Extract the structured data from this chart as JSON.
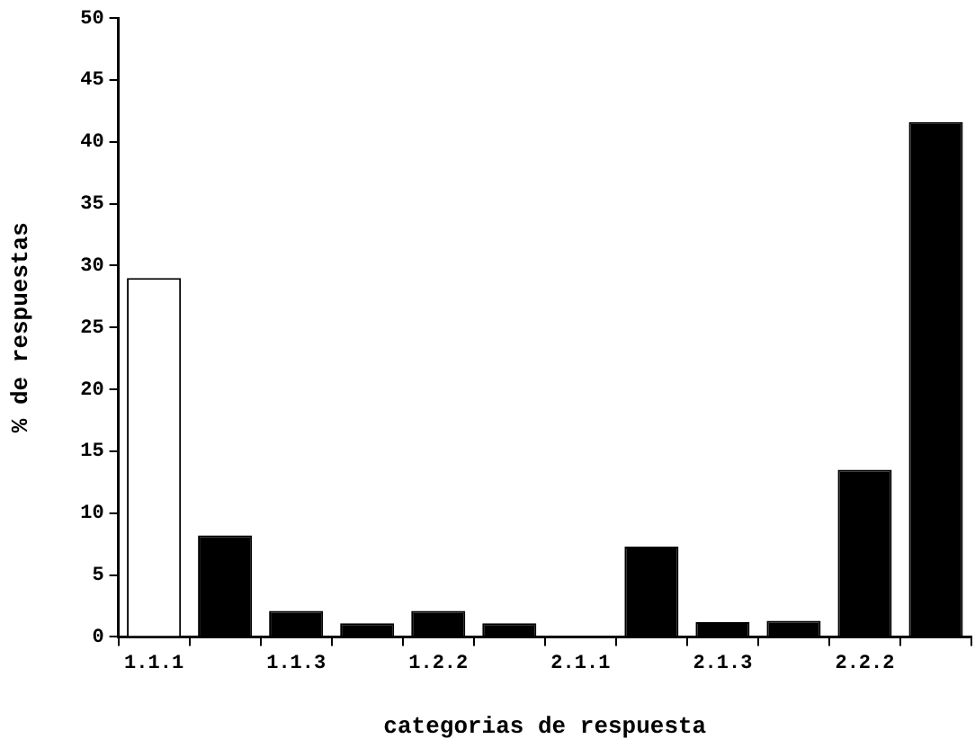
{
  "chart_data": {
    "type": "bar",
    "xlabel": "categorias de respuesta",
    "ylabel": "% de respuestas",
    "categories": [
      "1.1.1",
      null,
      "1.1.3",
      null,
      "1.2.2",
      null,
      "2.1.1",
      null,
      "2.1.3",
      null,
      "2.2.2",
      null
    ],
    "values": [
      29,
      8.2,
      2.1,
      1.1,
      2.1,
      1.1,
      0,
      7.3,
      1.2,
      1.3,
      13.5,
      41.6
    ],
    "colors": [
      "#ffffff",
      "#000000",
      "#000000",
      "#000000",
      "#000000",
      "#000000",
      "#000000",
      "#000000",
      "#000000",
      "#000000",
      "#000000",
      "#000000"
    ],
    "ylim": [
      0,
      50
    ],
    "yticks": [
      0,
      5,
      10,
      15,
      20,
      25,
      30,
      35,
      40,
      45,
      50
    ],
    "grid": false,
    "legend": false
  }
}
